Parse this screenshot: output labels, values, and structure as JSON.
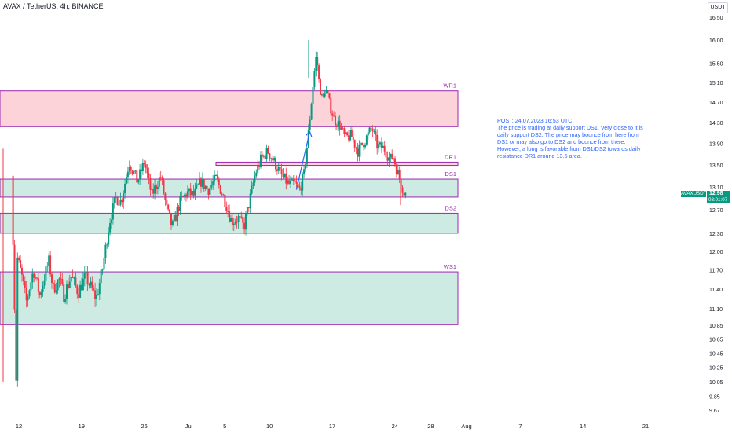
{
  "header": {
    "symbol_title": "AVAX / TetherUS, 4h, BINANCE",
    "currency": "USDT"
  },
  "annotation": {
    "lines": [
      "POST: 24.07.2023 16:53 UTC",
      "The price is trading at daily support DS1. Very close to it is",
      "daily support DS2. The price may bounce from here from",
      "DS1 or may also go to DS2 and bounce from there.",
      "However, a long is favorable from DS1/DS2 towards daily",
      "resistance DR1 around 13.5 area."
    ]
  },
  "price_tag": {
    "symbol": "AVAXUSDT",
    "price": "12.98",
    "timer": "03:01:07"
  },
  "colors": {
    "up": "#089981",
    "down": "#f23645",
    "support_fill": "#cdebe3",
    "resistance_fill": "#fbd3d8",
    "zone_border": "#9c27b0",
    "zone_label": "#9c27b0",
    "arrow": "#2962ff",
    "text": "#131722"
  },
  "chart_data": {
    "type": "candlestick",
    "symbol": "AVAX / TetherUS",
    "interval": "4h",
    "exchange": "BINANCE",
    "y_axis": {
      "side": "right",
      "ticks": [
        16.5,
        16.0,
        15.5,
        15.1,
        14.7,
        14.3,
        13.9,
        13.5,
        13.1,
        12.7,
        12.3,
        12.0,
        11.7,
        11.4,
        11.1,
        10.85,
        10.65,
        10.45,
        10.25,
        10.05,
        9.85,
        9.67
      ],
      "tick_labels": [
        "16.50",
        "16.00",
        "15.50",
        "15.10",
        "14.70",
        "14.30",
        "13.90",
        "13.50",
        "13.10",
        "12.70",
        "12.30",
        "12.00",
        "11.70",
        "11.40",
        "11.10",
        "10.85",
        "10.65",
        "10.45",
        "10.25",
        "10.05",
        "9.85",
        "9.67"
      ],
      "scale": "log"
    },
    "x_axis": {
      "tick_labels": [
        "12",
        "19",
        "26",
        "Jul",
        "5",
        "10",
        "17",
        "24",
        "28",
        "Aug",
        "7",
        "14",
        "21"
      ],
      "tick_days_since_jun1": [
        11,
        18,
        25,
        30,
        34,
        39,
        46,
        53,
        57,
        61,
        67,
        74,
        81
      ]
    },
    "zones": [
      {
        "label": "WR1",
        "type": "resistance",
        "low": 14.22,
        "high": 14.93
      },
      {
        "label": "DR1",
        "type": "resistance",
        "low": 13.49,
        "high": 13.55
      },
      {
        "label": "DS1",
        "type": "support",
        "low": 12.92,
        "high": 13.24
      },
      {
        "label": "DS2",
        "type": "support",
        "low": 12.3,
        "high": 12.64
      },
      {
        "label": "WS1",
        "type": "support",
        "low": 10.86,
        "high": 11.67
      }
    ],
    "last_price": 12.98,
    "trend_points": [
      {
        "name": "DS1 low",
        "price": 13.05
      },
      {
        "name": "WR1",
        "price": 14.4
      }
    ],
    "path": [
      [
        10.35,
        13.3
      ],
      [
        10.55,
        12.0
      ],
      [
        10.85,
        10.1
      ],
      [
        11.0,
        11.9
      ],
      [
        11.5,
        11.6
      ],
      [
        12.0,
        11.2
      ],
      [
        12.8,
        11.7
      ],
      [
        13.5,
        11.3
      ],
      [
        14.5,
        11.85
      ],
      [
        15.0,
        11.4
      ],
      [
        15.7,
        11.55
      ],
      [
        16.2,
        11.3
      ],
      [
        17.0,
        11.6
      ],
      [
        17.8,
        11.35
      ],
      [
        18.6,
        11.6
      ],
      [
        19.8,
        11.25
      ],
      [
        20.5,
        11.7
      ],
      [
        21.3,
        12.5
      ],
      [
        22.0,
        12.9
      ],
      [
        22.6,
        12.85
      ],
      [
        23.5,
        13.55
      ],
      [
        24.4,
        13.2
      ],
      [
        25.2,
        13.55
      ],
      [
        26.0,
        12.95
      ],
      [
        27.0,
        13.3
      ],
      [
        27.7,
        12.7
      ],
      [
        28.3,
        12.4
      ],
      [
        29.2,
        12.85
      ],
      [
        30.0,
        13.0
      ],
      [
        30.7,
        12.95
      ],
      [
        31.5,
        13.2
      ],
      [
        32.3,
        13.05
      ],
      [
        33.2,
        13.25
      ],
      [
        34.1,
        12.9
      ],
      [
        34.9,
        12.5
      ],
      [
        35.7,
        12.55
      ],
      [
        36.3,
        12.4
      ],
      [
        37.0,
        12.9
      ],
      [
        37.6,
        13.35
      ],
      [
        38.2,
        13.6
      ],
      [
        39.0,
        13.75
      ],
      [
        39.7,
        13.55
      ],
      [
        40.5,
        13.3
      ],
      [
        41.3,
        13.15
      ],
      [
        42.0,
        13.15
      ],
      [
        42.5,
        13.05
      ],
      [
        43.0,
        13.3
      ],
      [
        43.4,
        13.9
      ],
      [
        43.8,
        14.6
      ],
      [
        44.1,
        15.2
      ],
      [
        44.4,
        15.7
      ],
      [
        44.7,
        15.1
      ],
      [
        45.1,
        14.7
      ],
      [
        45.4,
        15.0
      ],
      [
        45.9,
        14.65
      ],
      [
        46.4,
        14.35
      ],
      [
        47.0,
        14.25
      ],
      [
        47.6,
        14.0
      ],
      [
        48.3,
        14.05
      ],
      [
        49.0,
        13.75
      ],
      [
        49.8,
        13.95
      ],
      [
        50.6,
        14.2
      ],
      [
        51.2,
        13.85
      ],
      [
        52.0,
        13.8
      ],
      [
        52.6,
        13.6
      ],
      [
        53.0,
        13.65
      ],
      [
        53.4,
        13.4
      ],
      [
        53.8,
        13.2
      ],
      [
        54.1,
        13.05
      ],
      [
        54.3,
        12.98
      ]
    ]
  }
}
